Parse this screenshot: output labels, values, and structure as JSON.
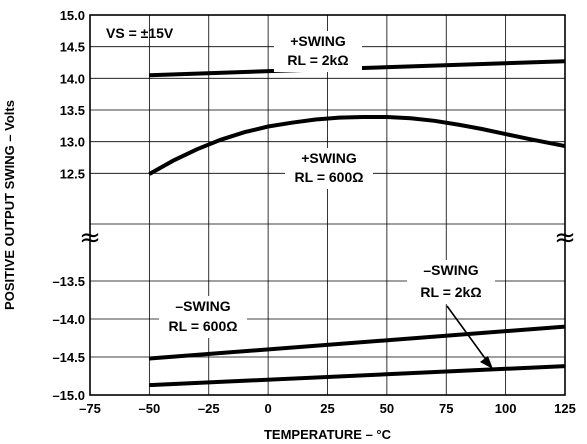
{
  "chart_data": {
    "type": "line",
    "xlabel": "TEMPERATURE – °C",
    "ylabel": "POSITIVE OUTPUT SWING – Volts",
    "xlim": [
      -75,
      125
    ],
    "x_ticks": [
      "–75",
      "–50",
      "–25",
      "0",
      "25",
      "50",
      "75",
      "100",
      "125"
    ],
    "upper_ylim": [
      12.0,
      15.0
    ],
    "upper_y_ticks": [
      "15.0",
      "14.5",
      "14.0",
      "13.5",
      "13.0",
      "12.5"
    ],
    "lower_ylim": [
      -15.0,
      -13.0
    ],
    "lower_y_ticks": [
      "–13.5",
      "–14.0",
      "–14.5",
      "–15.0"
    ],
    "axis_break": "≈",
    "grid": true,
    "condition": "VS = ±15V",
    "series": [
      {
        "id": "pos_2k",
        "label1": "+SWING",
        "label2": "RL = 2kΩ",
        "panel": "upper",
        "x": [
          -50,
          125
        ],
        "y": [
          14.05,
          14.27
        ]
      },
      {
        "id": "pos_600",
        "label1": "+SWING",
        "label2": "RL = 600Ω",
        "panel": "upper",
        "x": [
          -50,
          -40,
          -30,
          -20,
          -10,
          0,
          10,
          20,
          30,
          40,
          50,
          60,
          70,
          80,
          90,
          100,
          110,
          125
        ],
        "y": [
          12.49,
          12.7,
          12.88,
          13.03,
          13.15,
          13.24,
          13.3,
          13.35,
          13.38,
          13.39,
          13.39,
          13.37,
          13.33,
          13.27,
          13.2,
          13.12,
          13.04,
          12.93
        ]
      },
      {
        "id": "neg_600",
        "label1": "–SWING",
        "label2": "RL = 600Ω",
        "panel": "lower",
        "x": [
          -50,
          125
        ],
        "y": [
          -14.52,
          -14.1
        ]
      },
      {
        "id": "neg_2k",
        "label1": "–SWING",
        "label2": "RL = 2kΩ",
        "panel": "lower",
        "x": [
          -50,
          125
        ],
        "y": [
          -14.87,
          -14.62
        ]
      }
    ]
  }
}
